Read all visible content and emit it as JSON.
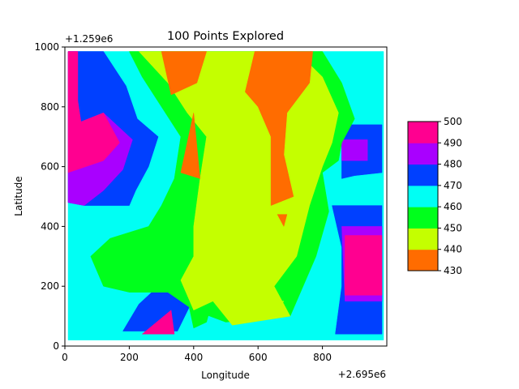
{
  "chart_data": {
    "type": "heatmap",
    "subtype": "filled-contour",
    "title": "100 Points Explored",
    "xlabel": "Longitude",
    "ylabel": "Latitude",
    "x_offset_label": "+2.695e6",
    "y_offset_label": "+1.259e6",
    "xlim": [
      0,
      1000
    ],
    "ylim": [
      0,
      1000
    ],
    "x_ticks": [
      "0",
      "200",
      "400",
      "600",
      "800"
    ],
    "y_ticks": [
      "0",
      "200",
      "400",
      "600",
      "800",
      "1000"
    ],
    "colorbar": {
      "levels": [
        430,
        440,
        450,
        460,
        470,
        480,
        490,
        500
      ],
      "tick_labels": [
        "430",
        "440",
        "450",
        "460",
        "470",
        "480",
        "490",
        "500"
      ],
      "colors": [
        "#ff6c00",
        "#c4ff00",
        "#00ff1c",
        "#00fff4",
        "#0040ff",
        "#a900ff",
        "#ff0090"
      ]
    },
    "regions": [
      {
        "level": 460,
        "polygons": [
          [
            [
              10,
              985
            ],
            [
              990,
              985
            ],
            [
              990,
              20
            ],
            [
              10,
              20
            ]
          ]
        ]
      },
      {
        "level": 470,
        "polygons": [
          [
            [
              10,
              985
            ],
            [
              120,
              985
            ],
            [
              190,
              870
            ],
            [
              225,
              760
            ],
            [
              290,
              700
            ],
            [
              260,
              600
            ],
            [
              220,
              520
            ],
            [
              200,
              470
            ],
            [
              60,
              470
            ],
            [
              10,
              480
            ]
          ],
          [
            [
              860,
              740
            ],
            [
              985,
              740
            ],
            [
              985,
              580
            ],
            [
              900,
              570
            ],
            [
              860,
              560
            ]
          ],
          [
            [
              180,
              50
            ],
            [
              350,
              50
            ],
            [
              400,
              160
            ],
            [
              300,
              210
            ],
            [
              230,
              140
            ]
          ],
          [
            [
              830,
              470
            ],
            [
              985,
              470
            ],
            [
              985,
              40
            ],
            [
              840,
              40
            ],
            [
              860,
              200
            ],
            [
              860,
              330
            ]
          ]
        ]
      },
      {
        "level": 480,
        "polygons": [
          [
            [
              10,
              985
            ],
            [
              40,
              985
            ],
            [
              40,
              820
            ],
            [
              50,
              750
            ],
            [
              120,
              780
            ],
            [
              210,
              690
            ],
            [
              180,
              590
            ],
            [
              120,
              520
            ],
            [
              60,
              470
            ],
            [
              10,
              480
            ]
          ],
          [
            [
              860,
              690
            ],
            [
              940,
              690
            ],
            [
              940,
              620
            ],
            [
              860,
              620
            ]
          ],
          [
            [
              860,
              400
            ],
            [
              985,
              400
            ],
            [
              985,
              150
            ],
            [
              870,
              150
            ]
          ]
        ]
      },
      {
        "level": 490,
        "polygons": [
          [
            [
              10,
              985
            ],
            [
              40,
              985
            ],
            [
              40,
              820
            ],
            [
              50,
              750
            ],
            [
              120,
              780
            ],
            [
              170,
              680
            ],
            [
              120,
              620
            ],
            [
              10,
              580
            ]
          ],
          [
            [
              870,
              370
            ],
            [
              985,
              370
            ],
            [
              985,
              170
            ],
            [
              870,
              170
            ]
          ],
          [
            [
              240,
              40
            ],
            [
              340,
              40
            ],
            [
              330,
              120
            ]
          ]
        ]
      },
      {
        "level": 500,
        "polygons": [
          [
            [
              900,
              350
            ],
            [
              960,
              350
            ],
            [
              960,
              230
            ],
            [
              900,
              230
            ]
          ]
        ]
      },
      {
        "level": 450,
        "polygons": [
          [
            [
              200,
              985
            ],
            [
              800,
              985
            ],
            [
              860,
              880
            ],
            [
              900,
              760
            ],
            [
              860,
              680
            ],
            [
              850,
              620
            ],
            [
              800,
              580
            ],
            [
              820,
              450
            ],
            [
              780,
              300
            ],
            [
              700,
              100
            ],
            [
              500,
              80
            ],
            [
              400,
              120
            ],
            [
              320,
              180
            ],
            [
              200,
              180
            ],
            [
              120,
              200
            ],
            [
              80,
              300
            ],
            [
              140,
              360
            ],
            [
              260,
              400
            ],
            [
              300,
              470
            ],
            [
              340,
              560
            ],
            [
              360,
              700
            ],
            [
              300,
              800
            ],
            [
              240,
              900
            ]
          ],
          [
            [
              380,
              160
            ],
            [
              460,
              160
            ],
            [
              440,
              80
            ],
            [
              400,
              60
            ]
          ]
        ]
      },
      {
        "level": 440,
        "polygons": [
          [
            [
              230,
              985
            ],
            [
              720,
              985
            ],
            [
              800,
              900
            ],
            [
              850,
              780
            ],
            [
              830,
              680
            ],
            [
              800,
              600
            ],
            [
              760,
              470
            ],
            [
              720,
              300
            ],
            [
              650,
              200
            ],
            [
              700,
              100
            ],
            [
              520,
              70
            ],
            [
              460,
              150
            ],
            [
              400,
              120
            ],
            [
              360,
              220
            ],
            [
              400,
              300
            ],
            [
              400,
              400
            ],
            [
              420,
              560
            ],
            [
              440,
              700
            ],
            [
              380,
              780
            ],
            [
              320,
              880
            ]
          ],
          [
            [
              480,
              150
            ],
            [
              680,
              150
            ],
            [
              640,
              90
            ],
            [
              520,
              90
            ]
          ]
        ]
      },
      {
        "level": 430,
        "polygons": [
          [
            [
              300,
              985
            ],
            [
              440,
              985
            ],
            [
              410,
              880
            ],
            [
              330,
              840
            ]
          ],
          [
            [
              590,
              985
            ],
            [
              770,
              985
            ],
            [
              760,
              880
            ],
            [
              690,
              780
            ],
            [
              680,
              640
            ],
            [
              710,
              500
            ],
            [
              640,
              470
            ],
            [
              640,
              700
            ],
            [
              600,
              800
            ],
            [
              560,
              850
            ]
          ],
          [
            [
              400,
              780
            ],
            [
              420,
              560
            ],
            [
              360,
              580
            ]
          ],
          [
            [
              660,
              440
            ],
            [
              690,
              440
            ],
            [
              680,
              400
            ]
          ]
        ]
      }
    ]
  }
}
